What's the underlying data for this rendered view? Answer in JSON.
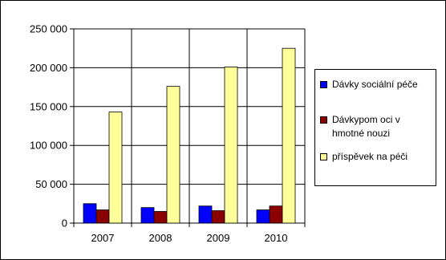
{
  "chart_data": {
    "type": "bar",
    "categories": [
      "2007",
      "2008",
      "2009",
      "2010"
    ],
    "series": [
      {
        "name": "Dávky sociální péče",
        "values": [
          25000,
          20000,
          22000,
          17000
        ],
        "color": "#0000ff"
      },
      {
        "name": "Dávkypom oci v\nhmotné nouzi",
        "values": [
          17000,
          15000,
          16000,
          22000
        ],
        "color": "#8b0000"
      },
      {
        "name": "příspěvek na péči",
        "values": [
          143000,
          176000,
          201000,
          225000
        ],
        "color": "#ffff99"
      }
    ],
    "yticks": [
      "0",
      "50 000",
      "100 000",
      "150 000",
      "200 000",
      "250 000"
    ],
    "ylim": [
      0,
      250000
    ],
    "grid": true,
    "legend_position": "right",
    "plot_background": "#ffffff"
  }
}
